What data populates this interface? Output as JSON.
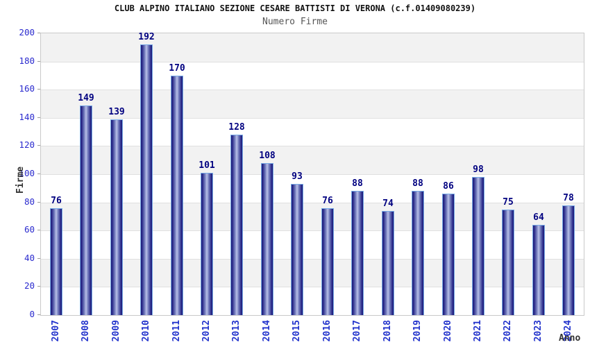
{
  "chart_data": {
    "type": "bar",
    "title": "CLUB ALPINO ITALIANO SEZIONE CESARE BATTISTI DI VERONA (c.f.01409080239)",
    "subtitle": "Numero Firme",
    "xlabel": "Anno",
    "ylabel": "Firme",
    "categories": [
      "2007",
      "2008",
      "2009",
      "2010",
      "2011",
      "2012",
      "2013",
      "2014",
      "2015",
      "2016",
      "2017",
      "2018",
      "2019",
      "2020",
      "2021",
      "2022",
      "2023",
      "2024"
    ],
    "values": [
      76,
      149,
      139,
      192,
      170,
      101,
      128,
      108,
      93,
      76,
      88,
      74,
      88,
      86,
      98,
      75,
      64,
      78
    ],
    "ylim": [
      0,
      200
    ],
    "ytick_step": 20,
    "grid": "horizontal-bands-alternating",
    "legend": "none",
    "value_labels": "above-bars",
    "colors": {
      "bar_dark_edge": "#1d1d76",
      "bar_light_center": "#b9c1e8",
      "bar_outline": "#77aae6",
      "value_label": "#000080",
      "y_tick_label": "#2a2ace",
      "x_tick_label": "#2233cc",
      "axis_title": "#333333",
      "band_gray": "#f2f2f2",
      "band_white": "#ffffff",
      "plot_border": "#c9c9c9",
      "gridline": "#e0e0e0",
      "title": "#111111",
      "subtitle": "#555555"
    }
  }
}
